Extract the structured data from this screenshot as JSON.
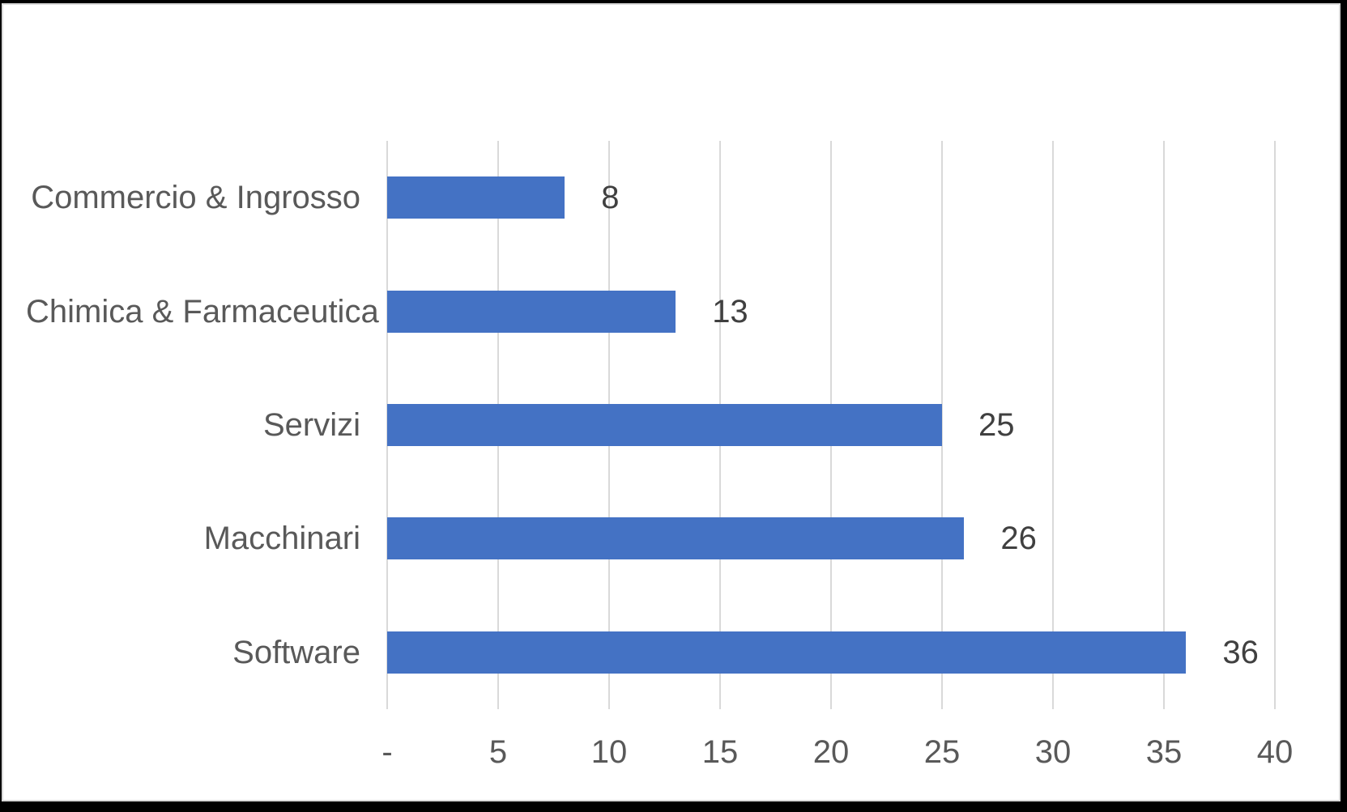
{
  "chart_data": {
    "type": "bar",
    "orientation": "horizontal",
    "title": "",
    "xlabel": "",
    "ylabel": "",
    "categories": [
      "Commercio & Ingrosso",
      "Chimica & Farmaceutica",
      "Servizi",
      "Macchinari",
      "Software"
    ],
    "values": [
      8,
      13,
      25,
      26,
      36
    ],
    "value_labels": [
      "8",
      "13",
      "25",
      "26",
      "36"
    ],
    "xlim": [
      0,
      40
    ],
    "x_ticks": [
      0,
      5,
      10,
      15,
      20,
      25,
      30,
      35,
      40
    ],
    "x_tick_labels": [
      "-",
      "5",
      "10",
      "15",
      "20",
      "25",
      "30",
      "35",
      "40"
    ],
    "grid": true,
    "legend": false,
    "colors": {
      "bar": "#4472C4",
      "gridline": "#D9D9D9",
      "category_label": "#595959",
      "tick_label": "#595959",
      "data_label": "#404040",
      "background": "#FFFFFF",
      "frame": "#000000"
    }
  }
}
